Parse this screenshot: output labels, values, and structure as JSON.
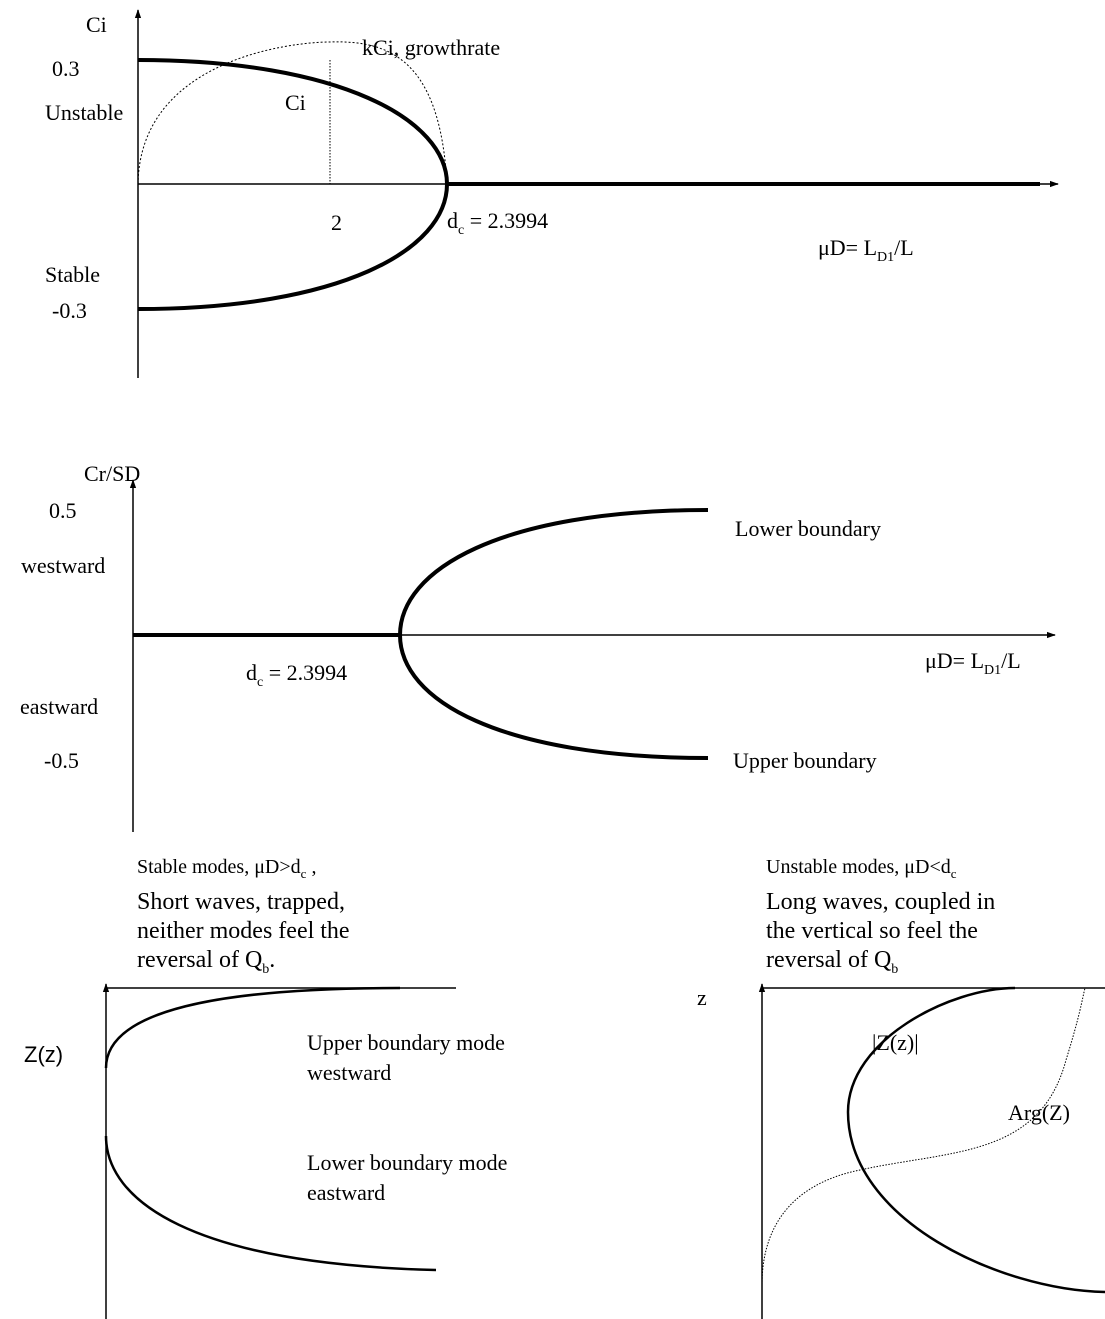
{
  "panel1": {
    "y_axis_label": "Ci",
    "tick_top": "0.3",
    "tick_bottom": "-0.3",
    "region_top": "Unstable",
    "region_bottom": "Stable",
    "curve_label_ci": "Ci",
    "curve_label_growth": "kCi, growthrate",
    "tick_two": "2",
    "dc_main": "d",
    "dc_sub": "c",
    "dc_value": " = 2.3994",
    "x_axis_main": "μD= L",
    "x_axis_sub": "D1",
    "x_axis_tail": "/L"
  },
  "panel2": {
    "y_axis_label": "Cr/SD",
    "tick_top": "0.5",
    "tick_bottom": "-0.5",
    "region_top": "westward",
    "region_bottom": "eastward",
    "dc_main": "d",
    "dc_sub": "c",
    "dc_value": " = 2.3994",
    "branch_top": "Lower boundary",
    "branch_bottom": "Upper boundary",
    "x_axis_main": "μD= L",
    "x_axis_sub": "D1",
    "x_axis_tail": "/L"
  },
  "caption_left": {
    "line1_a": "Stable  modes, μD>d",
    "line1_sub": "c",
    "line1_b": " ,",
    "line2": "Short waves, trapped,",
    "line3": "neither modes feel the",
    "line4_a": "reversal of Q",
    "line4_sub": "b",
    "line4_b": "."
  },
  "caption_right": {
    "line1_a": "Unstable  modes, μD<d",
    "line1_sub": "c",
    "line2": "Long waves, coupled in",
    "line3": "the vertical so feel the",
    "line4_a": "reversal of  Q",
    "line4_sub": "b"
  },
  "panel3": {
    "y_axis_label": "Z(z)",
    "mode_upper_1": "Upper boundary mode",
    "mode_upper_2": "westward",
    "mode_lower_1": "Lower boundary mode",
    "mode_lower_2": "eastward"
  },
  "panel4": {
    "y_axis_label": "z",
    "abs_label": "|Z(z)|",
    "arg_label": "Arg(Z)"
  }
}
